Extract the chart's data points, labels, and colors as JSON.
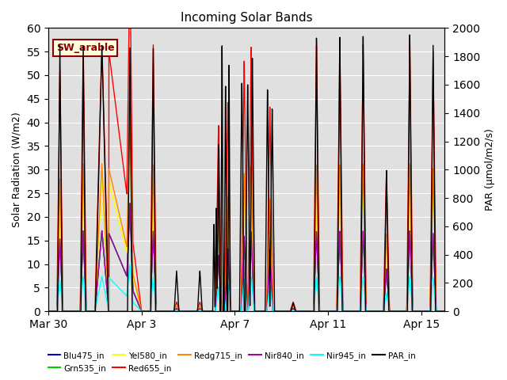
{
  "title": "Incoming Solar Bands",
  "ylabel_left": "Solar Radiation (W/m2)",
  "ylabel_right": "PAR (μmol/m2/s)",
  "annotation": "SW_arable",
  "ylim_left": [
    0,
    60
  ],
  "ylim_right": [
    0,
    2000
  ],
  "yticks_left": [
    0,
    5,
    10,
    15,
    20,
    25,
    30,
    35,
    40,
    45,
    50,
    55,
    60
  ],
  "yticks_right": [
    0,
    200,
    400,
    600,
    800,
    1000,
    1200,
    1400,
    1600,
    1800,
    2000
  ],
  "background_color": "#e0e0e0",
  "colors": {
    "Blu475_in": "#0000cc",
    "Grn535_in": "#00cc00",
    "Yel580_in": "#ffff00",
    "Red655_in": "#ff0000",
    "Redg715_in": "#ff8800",
    "Nir840_in": "#aa00aa",
    "Nir945_in": "#00ffff",
    "PAR_in": "#000000"
  },
  "x_ticks_labels": [
    "Mar 30",
    "Apr 3",
    "Apr 7",
    "Apr 11",
    "Apr 15"
  ],
  "x_ticks_positions": [
    0,
    4,
    8,
    12,
    16
  ]
}
